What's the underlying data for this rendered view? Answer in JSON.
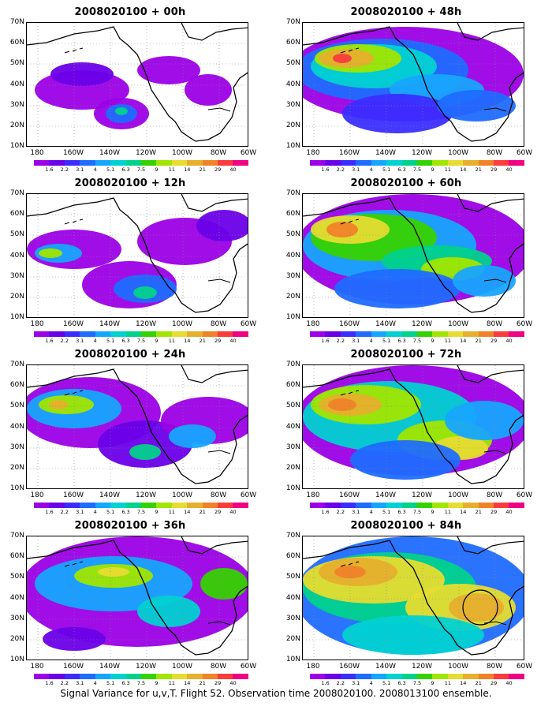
{
  "panels": [
    {
      "title": "2008020100 + 00h"
    },
    {
      "title": "2008020100 + 48h"
    },
    {
      "title": "2008020100 + 12h"
    },
    {
      "title": "2008020100 + 60h"
    },
    {
      "title": "2008020100 + 24h"
    },
    {
      "title": "2008020100 + 72h"
    },
    {
      "title": "2008020100 + 36h"
    },
    {
      "title": "2008020100 + 84h"
    }
  ],
  "lat_labels": [
    "70N",
    "60N",
    "50N",
    "40N",
    "30N",
    "20N",
    "10N"
  ],
  "lon_labels": [
    "180",
    "160W",
    "140W",
    "120W",
    "100W",
    "80W",
    "60W"
  ],
  "colorbar": {
    "levels": [
      "1.6",
      "2.2",
      "3.1",
      "4",
      "5.1",
      "6.3",
      "7.5",
      "9",
      "11",
      "14",
      "21",
      "29",
      "40"
    ],
    "colors": [
      "#9b00e6",
      "#6a00e8",
      "#3b2dff",
      "#1f6cff",
      "#16a6ff",
      "#00d2d2",
      "#00d28c",
      "#36d200",
      "#a0e600",
      "#e6dc32",
      "#e6af2d",
      "#f08228",
      "#fa3c3c",
      "#f00082"
    ]
  },
  "footer": "Signal Variance for u,v,T. Flight 52. Observation time 2008020100. 2008013100 ensemble."
}
